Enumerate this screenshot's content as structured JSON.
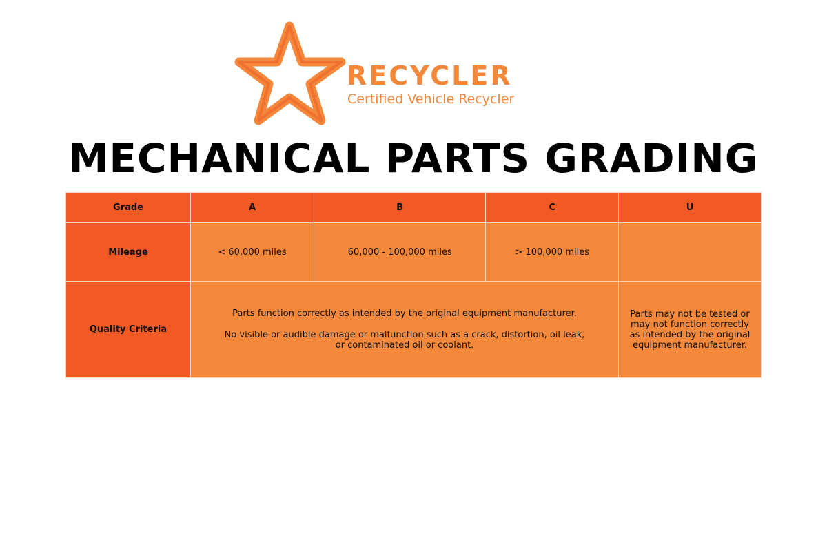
{
  "logo": {
    "brand": "RECYCLER",
    "tagline": "Certified Vehicle Recycler",
    "icon": "star-arrows-icon",
    "color": "#F3873A"
  },
  "title": "MECHANICAL PARTS GRADING",
  "colors": {
    "header": "#F15A24",
    "cell": "#F3873A"
  },
  "table": {
    "header": [
      "Grade",
      "A",
      "B",
      "C",
      "U"
    ],
    "mileage": {
      "label": "Mileage",
      "values": [
        "< 60,000 miles",
        "60,000 - 100,000 miles",
        "> 100,000 miles",
        ""
      ]
    },
    "quality": {
      "label": "Quality Criteria",
      "abc_line1": "Parts function correctly as intended by the original equipment manufacturer.",
      "abc_line2": "No visible or audible damage or malfunction such as a crack, distortion, oil leak, or contaminated oil or coolant.",
      "u": "Parts may not be tested or may not function correctly as intended by the original equipment manufacturer."
    }
  }
}
